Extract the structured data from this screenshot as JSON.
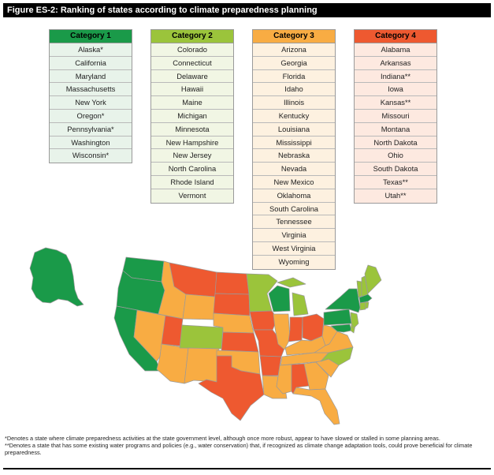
{
  "title": "Figure ES-2: Ranking of states according to climate preparedness planning",
  "colors": {
    "category_1": "#1a9a49",
    "category_2": "#9bc43b",
    "category_3": "#f8ac43",
    "category_4": "#ee5930"
  },
  "categories": [
    {
      "label": "Category 1",
      "states": [
        "Alaska*",
        "California",
        "Maryland",
        "Massachusetts",
        "New York",
        "Oregon*",
        "Pennsylvania*",
        "Washington",
        "Wisconsin*"
      ]
    },
    {
      "label": "Category 2",
      "states": [
        "Colorado",
        "Connecticut",
        "Delaware",
        "Hawaii",
        "Maine",
        "Michigan",
        "Minnesota",
        "New Hampshire",
        "New Jersey",
        "North Carolina",
        "Rhode Island",
        "Vermont"
      ]
    },
    {
      "label": "Category 3",
      "states": [
        "Arizona",
        "Georgia",
        "Florida",
        "Idaho",
        "Illinois",
        "Kentucky",
        "Louisiana",
        "Mississippi",
        "Nebraska",
        "Nevada",
        "New Mexico",
        "Oklahoma",
        "South Carolina",
        "Tennessee",
        "Virginia",
        "West Virginia",
        "Wyoming"
      ]
    },
    {
      "label": "Category 4",
      "states": [
        "Alabama",
        "Arkansas",
        "Indiana**",
        "Iowa",
        "Kansas**",
        "Missouri",
        "Montana",
        "North Dakota",
        "Ohio",
        "South Dakota",
        "Texas**",
        "Utah**"
      ]
    }
  ],
  "footnotes": {
    "single_star": "*Denotes a state where climate preparedness activities at the state government level, although once more robust, appear to have slowed or stalled in some planning areas.",
    "double_star": "**Denotes a state that has some existing water programs and policies (e.g., water conservation) that, if recognized as climate change adaptation tools, could prove beneficial for climate preparedness."
  }
}
